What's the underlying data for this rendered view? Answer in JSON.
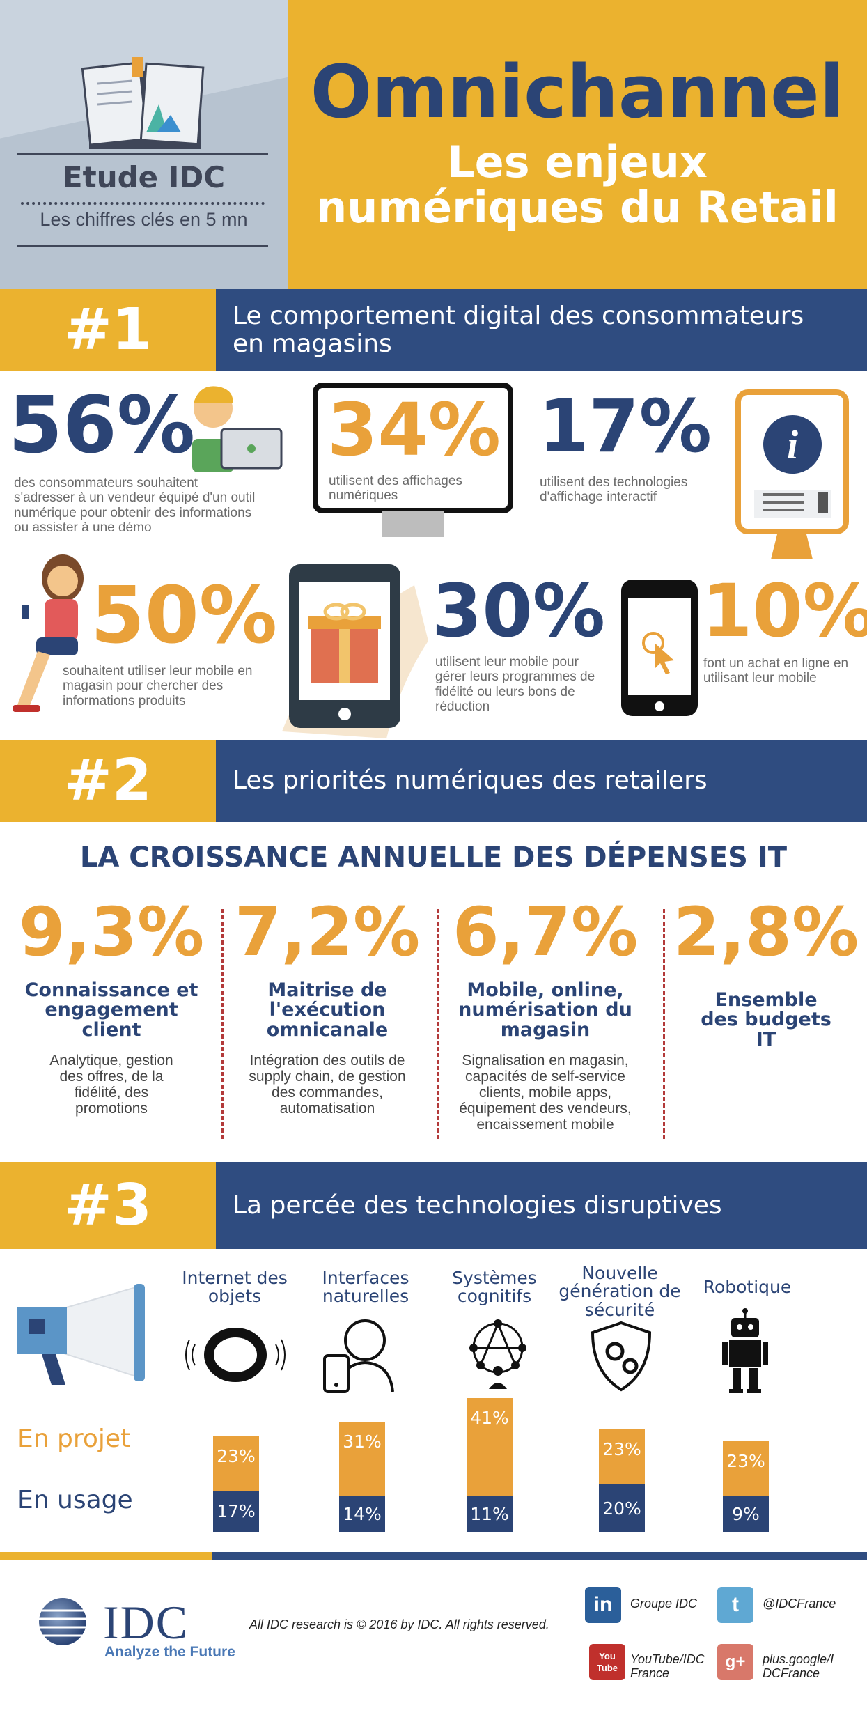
{
  "header": {
    "title": "Omnichannel",
    "subtitle_line1": "Les enjeux",
    "subtitle_line2": "numériques du Retail",
    "study_title": "Etude IDC",
    "study_subtitle": "Les chiffres clés en 5 mn"
  },
  "section1": {
    "number": "#1",
    "title_line1": "Le comportement digital des consommateurs",
    "title_line2": "en magasins",
    "stats": [
      {
        "value": "56%",
        "text": "des consommateurs souhaitent s'adresser à un vendeur équipé d'un outil numérique pour obtenir des informations ou assister à une démo"
      },
      {
        "value": "34%",
        "text": "utilisent des affichages numériques"
      },
      {
        "value": "17%",
        "text": "utilisent des technologies d'affichage interactif"
      },
      {
        "value": "50%",
        "text": "souhaitent utiliser leur mobile en magasin pour chercher des informations produits"
      },
      {
        "value": "30%",
        "text": "utilisent leur mobile pour gérer leurs programmes de fidélité ou leurs bons de réduction"
      },
      {
        "value": "10%",
        "text": "font un achat en ligne en utilisant leur mobile"
      }
    ],
    "info_letter": "i"
  },
  "section2": {
    "number": "#2",
    "title": "Les priorités numériques des retailers",
    "heading": "LA CROISSANCE ANNUELLE DES DÉPENSES IT",
    "columns": [
      {
        "value": "9,3%",
        "title": "Connaissance et engagement client",
        "text": "Analytique, gestion des offres, de la fidélité, des promotions"
      },
      {
        "value": "7,2%",
        "title": "Maitrise de l'exécution omnicanale",
        "text": "Intégration des outils de supply chain, de gestion des commandes, automatisation"
      },
      {
        "value": "6,7%",
        "title": "Mobile, online, numérisation du magasin",
        "text": "Signalisation en magasin, capacités de self-service clients, mobile apps, équipement des vendeurs, encaissement mobile"
      },
      {
        "value": "2,8%",
        "title": "Ensemble des budgets IT",
        "text": ""
      }
    ]
  },
  "section3": {
    "number": "#3",
    "title": "La percée des technologies disruptives",
    "label_projet": "En projet",
    "label_usage": "En usage",
    "chart_data": {
      "type": "bar",
      "categories": [
        "Internet des objets",
        "Interfaces naturelles",
        "Systèmes cognitifs",
        "Nouvelle génération de sécurité",
        "Robotique"
      ],
      "series": [
        {
          "name": "En projet",
          "values": [
            23,
            31,
            41,
            23,
            23
          ]
        },
        {
          "name": "En usage",
          "values": [
            17,
            14,
            11,
            20,
            9
          ]
        }
      ],
      "value_labels": {
        "projet": [
          "23%",
          "31%",
          "41%",
          "23%",
          "23%"
        ],
        "usage": [
          "17%",
          "14%",
          "11%",
          "20%",
          "9%"
        ]
      },
      "colors": {
        "projet": "#e9a13a",
        "usage": "#2b4475"
      }
    },
    "tech_labels": [
      [
        "Internet des",
        "objets"
      ],
      [
        "Interfaces",
        "naturelles"
      ],
      [
        "Systèmes",
        "cognitifs"
      ],
      [
        "Nouvelle",
        "génération de",
        "sécurité"
      ],
      [
        "Robotique"
      ]
    ]
  },
  "footer": {
    "logo_text": "IDC",
    "tagline": "Analyze the Future",
    "copyright": "All IDC research is © 2016 by IDC. All rights reserved.",
    "social": [
      {
        "icon": "linkedin-icon",
        "glyph": "in",
        "line1": "Groupe IDC",
        "line2": "",
        "color": "#2b5f9a"
      },
      {
        "icon": "twitter-icon",
        "glyph": "t",
        "line1": "@IDCFrance",
        "line2": "",
        "color": "#5fa8d3"
      },
      {
        "icon": "youtube-icon",
        "glyph": "You Tube",
        "line1": "YouTube/IDC",
        "line2": "France",
        "color": "#c0302c"
      },
      {
        "icon": "googleplus-icon",
        "glyph": "g+",
        "line1": "plus.google/I",
        "line2": "DCFrance",
        "color": "#d8786a"
      }
    ]
  },
  "colors": {
    "navy": "#2b4475",
    "gold": "#ebb22f",
    "orange": "#e9a13a",
    "band": "#2f4c80"
  }
}
